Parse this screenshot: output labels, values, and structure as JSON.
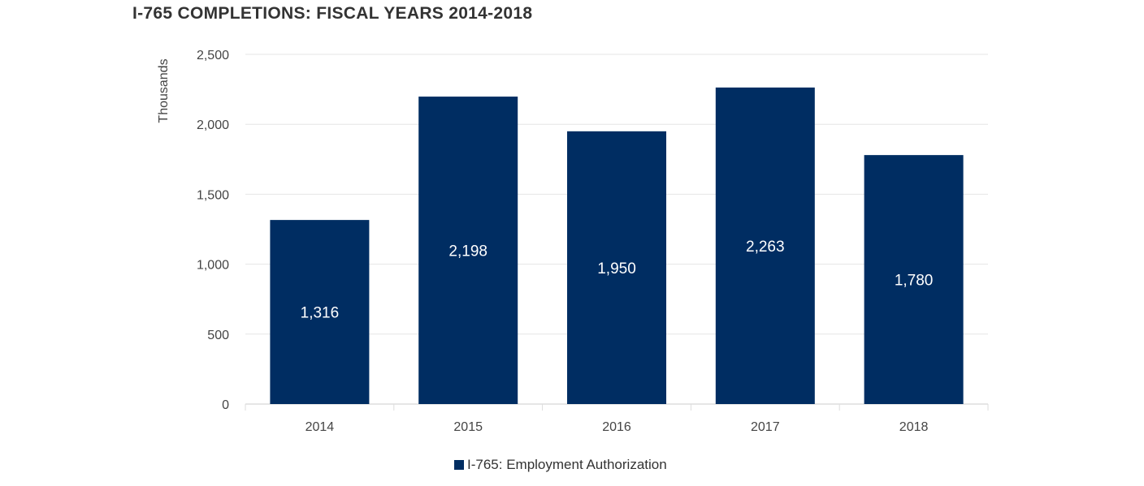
{
  "chart_data": {
    "type": "bar",
    "title": "I-765 COMPLETIONS: FISCAL YEARS 2014-2018",
    "xlabel": "",
    "ylabel": "Thousands",
    "categories": [
      "2014",
      "2015",
      "2016",
      "2017",
      "2018"
    ],
    "series": [
      {
        "name": "I-765: Employment Authorization",
        "values": [
          1316,
          2198,
          1950,
          2263,
          1780
        ],
        "color": "#002d62"
      }
    ],
    "data_labels": [
      "1,316",
      "2,198",
      "1,950",
      "2,263",
      "1,780"
    ],
    "ylim": [
      0,
      2500
    ],
    "yticks": [
      0,
      500,
      1000,
      1500,
      2000,
      2500
    ],
    "ytick_labels": [
      "0",
      "500",
      "1,000",
      "1,500",
      "2,000",
      "2,500"
    ],
    "grid": true,
    "legend_position": "bottom-center"
  }
}
